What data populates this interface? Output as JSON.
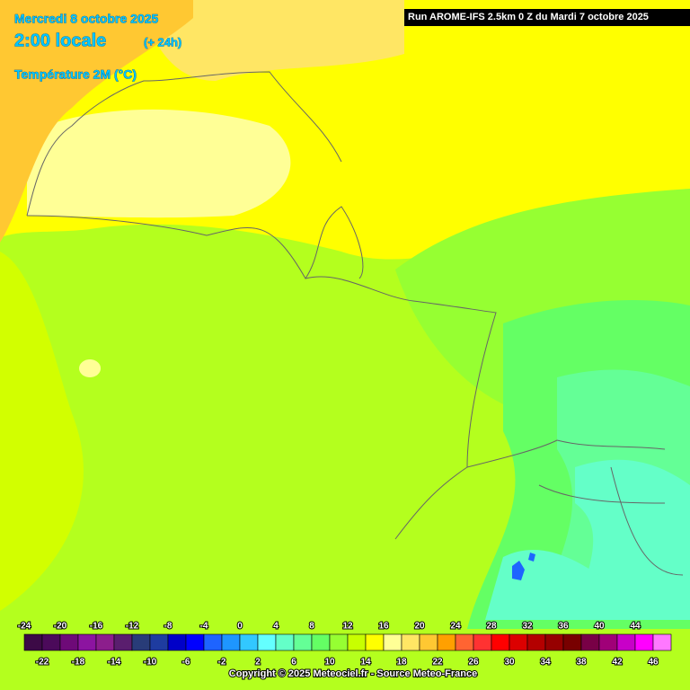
{
  "header": {
    "date": "Mercredi 8 octobre 2025",
    "time": "2:00 locale",
    "lead": "(+ 24h)",
    "parameter": "Température 2M (°C)",
    "run": "Run AROME-IFS 2.5km 0 Z du Mardi 7 octobre 2025"
  },
  "legend": {
    "ticks": [
      -24,
      -22,
      -20,
      -18,
      -16,
      -14,
      -12,
      -10,
      -8,
      -6,
      -4,
      -2,
      0,
      2,
      4,
      6,
      8,
      10,
      12,
      14,
      16,
      18,
      20,
      22,
      24,
      26,
      28,
      30,
      32,
      34,
      36,
      38,
      40,
      42,
      44,
      46
    ],
    "colors": [
      "#3c0a46",
      "#4b0a5a",
      "#6e0a78",
      "#8c14a0",
      "#8c1e8c",
      "#5a1e6e",
      "#283c78",
      "#1e3ca0",
      "#0000c8",
      "#0000ff",
      "#1e64ff",
      "#1e96ff",
      "#32c8ff",
      "#64ffff",
      "#64ffc8",
      "#64ff96",
      "#64ff64",
      "#96ff32",
      "#c8ff00",
      "#ffff00",
      "#ffff96",
      "#ffe664",
      "#ffc832",
      "#ffa000",
      "#ff6432",
      "#ff3232",
      "#ff0000",
      "#dc0000",
      "#b40000",
      "#960000",
      "#780000",
      "#780046",
      "#a00078",
      "#c800c8",
      "#ff00ff",
      "#ff78ff"
    ]
  },
  "footer": {
    "copyright": "Copyright © 2025 Meteociel.fr - Source Meteo-France"
  }
}
